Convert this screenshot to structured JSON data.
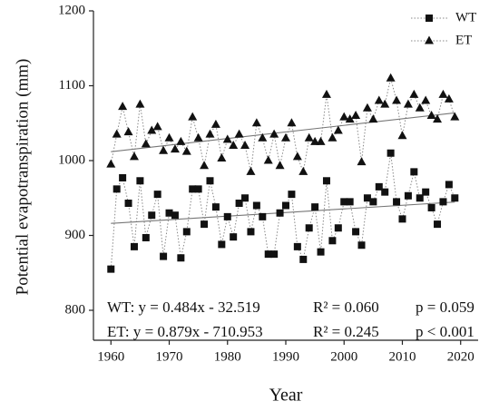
{
  "chart_data": {
    "type": "line",
    "x_label": "Year",
    "y_label": "Potential evapotranspiration (mm)",
    "x": [
      1960,
      1961,
      1962,
      1963,
      1964,
      1965,
      1966,
      1967,
      1968,
      1969,
      1970,
      1971,
      1972,
      1973,
      1974,
      1975,
      1976,
      1977,
      1978,
      1979,
      1980,
      1981,
      1982,
      1983,
      1984,
      1985,
      1986,
      1987,
      1988,
      1989,
      1990,
      1991,
      1992,
      1993,
      1994,
      1995,
      1996,
      1997,
      1998,
      1999,
      2000,
      2001,
      2002,
      2003,
      2004,
      2005,
      2006,
      2007,
      2008,
      2009,
      2010,
      2011,
      2012,
      2013,
      2014,
      2015,
      2016,
      2017,
      2018,
      2019
    ],
    "series": [
      {
        "name": "WT",
        "marker": "square",
        "color": "#111111",
        "values": [
          855,
          962,
          977,
          943,
          885,
          973,
          897,
          927,
          955,
          872,
          930,
          927,
          870,
          905,
          962,
          962,
          915,
          973,
          938,
          888,
          925,
          898,
          943,
          950,
          905,
          940,
          925,
          875,
          875,
          930,
          940,
          955,
          885,
          868,
          910,
          938,
          878,
          973,
          893,
          910,
          945,
          945,
          905,
          887,
          950,
          945,
          965,
          958,
          1010,
          945,
          922,
          953,
          985,
          950,
          958,
          937,
          915,
          945,
          968,
          950
        ],
        "fit": {
          "slope": 0.484,
          "intercept": -32.519
        },
        "annotation": {
          "equation": "WT: y = 0.484x - 32.519",
          "r2": "R² = 0.060",
          "p": "p = 0.059"
        }
      },
      {
        "name": "ET",
        "marker": "triangle",
        "color": "#111111",
        "values": [
          995,
          1035,
          1072,
          1038,
          1005,
          1075,
          1022,
          1040,
          1045,
          1013,
          1030,
          1015,
          1025,
          1012,
          1058,
          1030,
          993,
          1035,
          1048,
          1003,
          1028,
          1020,
          1035,
          1020,
          985,
          1050,
          1030,
          1000,
          1035,
          993,
          1030,
          1050,
          1005,
          985,
          1030,
          1025,
          1025,
          1088,
          1030,
          1040,
          1058,
          1055,
          1060,
          998,
          1070,
          1055,
          1080,
          1075,
          1110,
          1080,
          1033,
          1075,
          1088,
          1070,
          1080,
          1060,
          1055,
          1088,
          1082,
          1058
        ],
        "fit": {
          "slope": 0.879,
          "intercept": -710.953
        },
        "annotation": {
          "equation": "ET: y = 0.879x - 710.953",
          "r2": "R² = 0.245",
          "p": "p < 0.001"
        }
      }
    ],
    "xlim": [
      1957,
      2023
    ],
    "xticks": [
      1960,
      1970,
      1980,
      1990,
      2000,
      2010,
      2020
    ],
    "ylim": [
      760,
      1200
    ],
    "yticks": [
      800,
      900,
      1000,
      1100,
      1200
    ],
    "legend": "top-right"
  }
}
